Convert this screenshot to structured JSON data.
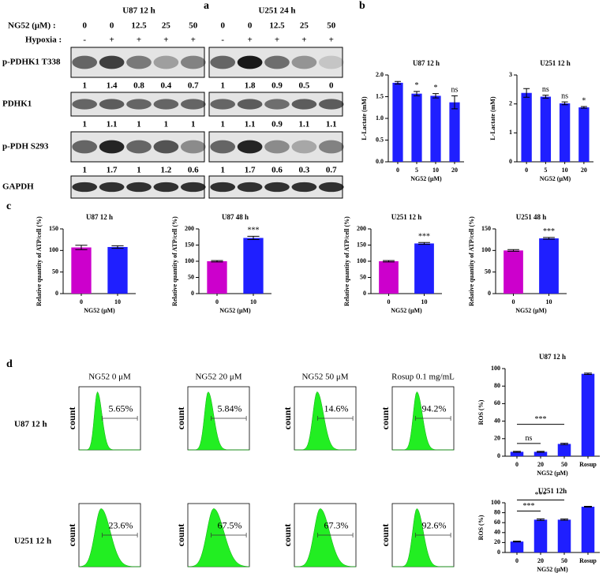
{
  "panel_labels": [
    "a",
    "b",
    "c",
    "d"
  ],
  "blot": {
    "dose_label": "NG52 (μM) :",
    "hypoxia_label": "Hypoxia :",
    "groups": [
      {
        "title": "U87    12 h",
        "doses": [
          0,
          0,
          12.5,
          25,
          50
        ],
        "hypoxia": [
          "-",
          "+",
          "+",
          "+",
          "+"
        ]
      },
      {
        "title": "U251    24 h",
        "doses": [
          0,
          0,
          12.5,
          25,
          50
        ],
        "hypoxia": [
          "-",
          "+",
          "+",
          "+",
          "+"
        ]
      }
    ],
    "rows": [
      {
        "label": "p-PDHK1 T338",
        "quant": [
          [
            1,
            1.4,
            0.8,
            0.4,
            0.7
          ],
          [
            1,
            1.8,
            0.9,
            0.5,
            0
          ]
        ]
      },
      {
        "label": "PDHK1",
        "quant": [
          [
            1,
            1.1,
            1,
            1,
            1
          ],
          [
            1,
            1.1,
            0.9,
            1.1,
            1.1
          ]
        ]
      },
      {
        "label": "p-PDH S293",
        "quant": [
          [
            1,
            1.7,
            1,
            1.2,
            0.6
          ],
          [
            1,
            1.7,
            0.6,
            0.3,
            0.7
          ]
        ]
      },
      {
        "label": "GAPDH"
      }
    ]
  },
  "chart_data": [
    {
      "type": "bar",
      "title": "U87    12 h",
      "ylabel": "L-Lactate     (mM)",
      "xlabel": "NG52 (μM)",
      "categories": [
        "0",
        "5",
        "10",
        "20"
      ],
      "values": [
        1.82,
        1.57,
        1.52,
        1.37
      ],
      "errors": [
        0.03,
        0.05,
        0.05,
        0.15
      ],
      "annotations": [
        null,
        "*",
        "*",
        "ns"
      ],
      "color": "#1f1fff",
      "ylim": [
        0,
        2
      ],
      "yticks": [
        {
          "value": 0,
          "label": "0.0"
        },
        {
          "value": 0.5,
          "label": "0.5"
        },
        {
          "value": 1,
          "label": "1.0"
        },
        {
          "value": 1.5,
          "label": "1.5"
        },
        {
          "value": 2,
          "label": "2.0"
        }
      ]
    },
    {
      "type": "bar",
      "title": "U251    12 h",
      "ylabel": "L-Lactate     (mM)",
      "xlabel": "NG52 (μM)",
      "categories": [
        "0",
        "5",
        "10",
        "20"
      ],
      "values": [
        2.38,
        2.25,
        2.02,
        1.88
      ],
      "errors": [
        0.15,
        0.05,
        0.05,
        0.03
      ],
      "annotations": [
        null,
        "ns",
        "ns",
        "*"
      ],
      "color": "#1f1fff",
      "ylim": [
        0,
        3
      ],
      "yticks": [
        0,
        1,
        2,
        3
      ]
    },
    {
      "type": "bar",
      "title": "U87   12 h",
      "ylabel": "Relative  quantity of ATP/cell (%)",
      "xlabel": "NG52 (μM)",
      "categories": [
        "0",
        "10"
      ],
      "values": [
        107,
        108
      ],
      "errors": [
        5,
        3
      ],
      "colors": [
        "#cc00cc",
        "#1f1fff"
      ],
      "ylim": [
        0,
        150
      ],
      "yticks": [
        0,
        50,
        100,
        150
      ]
    },
    {
      "type": "bar",
      "title": "U87   48 h",
      "ylabel": "Relative  quantity of ATP/cell (%)",
      "xlabel": "NG52 (μM)",
      "categories": [
        "0",
        "10"
      ],
      "values": [
        100,
        172
      ],
      "errors": [
        2,
        5
      ],
      "annotations": [
        null,
        "***"
      ],
      "colors": [
        "#cc00cc",
        "#1f1fff"
      ],
      "ylim": [
        0,
        200
      ],
      "yticks": [
        0,
        50,
        100,
        150,
        200
      ]
    },
    {
      "type": "bar",
      "title": "U251   12 h",
      "ylabel": "Relative  quantity of ATP/cell (%)",
      "xlabel": "NG52 (μM)",
      "categories": [
        "0",
        "10"
      ],
      "values": [
        100,
        155
      ],
      "errors": [
        2,
        3
      ],
      "annotations": [
        null,
        "***"
      ],
      "colors": [
        "#cc00cc",
        "#1f1fff"
      ],
      "ylim": [
        0,
        200
      ],
      "yticks": [
        0,
        50,
        100,
        150,
        200
      ]
    },
    {
      "type": "bar",
      "title": "U251   48 h",
      "ylabel": "Relative  quantity of ATP/cell (%)",
      "xlabel": "NG52 (μM)",
      "categories": [
        "0",
        "10"
      ],
      "values": [
        100,
        128
      ],
      "errors": [
        2,
        2
      ],
      "annotations": [
        null,
        "***"
      ],
      "colors": [
        "#cc00cc",
        "#1f1fff"
      ],
      "ylim": [
        0,
        150
      ],
      "yticks": [
        0,
        50,
        100,
        150
      ]
    },
    {
      "type": "bar",
      "title": "U87   12 h",
      "ylabel": "ROS (%)",
      "xlabel": "NG52 (μM)",
      "categories": [
        "0",
        "20",
        "50",
        "Rosup"
      ],
      "values": [
        5,
        5,
        14,
        94
      ],
      "errors": [
        0.5,
        0.5,
        0.8,
        0.8
      ],
      "color": "#1f1fff",
      "brackets": [
        {
          "span": [
            0,
            1
          ],
          "label": "ns"
        },
        {
          "span": [
            0,
            2
          ],
          "label": "***"
        }
      ],
      "ylim": [
        0,
        100
      ],
      "yticks": [
        0,
        20,
        40,
        60,
        80,
        100
      ]
    },
    {
      "type": "bar",
      "title": "U251   12h",
      "ylabel": "ROS (%)",
      "xlabel": "NG52 (μM)",
      "categories": [
        "0",
        "20",
        "50",
        "Rosup"
      ],
      "values": [
        22,
        66,
        66,
        92
      ],
      "errors": [
        0.8,
        1.5,
        1.2,
        0.8
      ],
      "color": "#1f1fff",
      "brackets": [
        {
          "span": [
            0,
            1
          ],
          "label": "***"
        },
        {
          "span": [
            0,
            2
          ],
          "label": "***"
        }
      ],
      "ylim": [
        0,
        100
      ],
      "yticks": [
        0,
        20,
        40,
        60,
        80,
        100
      ]
    }
  ],
  "flow": {
    "axis_label": "count",
    "columns": [
      "NG52  0 μM",
      "NG52  20 μM",
      "NG52  50 μM",
      "Rosup  0.1 mg/mL"
    ],
    "rows": [
      {
        "label": "U87  12 h",
        "percents": [
          "5.65%",
          "5.84%",
          "14.6%",
          "94.2%"
        ]
      },
      {
        "label": "U251  12 h",
        "percents": [
          "23.6%",
          "67.5%",
          "67.3%",
          "92.6%"
        ]
      }
    ]
  }
}
